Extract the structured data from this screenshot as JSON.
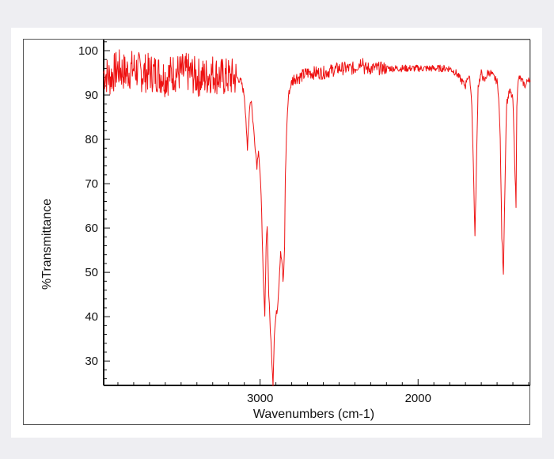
{
  "chart_data": {
    "type": "line",
    "title": "",
    "xlabel": "Wavenumbers (cm-1)",
    "ylabel": "%Transmittance",
    "x_reversed": true,
    "xlim": [
      3990,
      1290
    ],
    "ylim": [
      24.5,
      102.5
    ],
    "xticks": [
      3000,
      2000
    ],
    "yticks": [
      100,
      90,
      80,
      70,
      60,
      50,
      40,
      30
    ],
    "grid": false,
    "line_color": "#ee1111",
    "series": [
      {
        "x": [
          3990,
          3950,
          3900,
          3850,
          3800,
          3750,
          3700,
          3650,
          3600,
          3550,
          3500,
          3450,
          3400,
          3350,
          3300,
          3250,
          3200,
          3150,
          3120,
          3100,
          3090,
          3080,
          3075,
          3065,
          3055,
          3050,
          3040,
          3030,
          3020,
          3010,
          3000,
          2990,
          2980,
          2970,
          2962,
          2955,
          2945,
          2935,
          2925,
          2918,
          2910,
          2900,
          2890,
          2880,
          2870,
          2860,
          2855,
          2850,
          2845,
          2840,
          2830,
          2820,
          2800,
          2780,
          2750,
          2700,
          2600,
          2500,
          2400,
          2350,
          2340,
          2300,
          2200,
          2100,
          2000,
          1900,
          1800,
          1760,
          1740,
          1720,
          1700,
          1690,
          1680,
          1670,
          1660,
          1650,
          1640,
          1620,
          1600,
          1580,
          1560,
          1540,
          1520,
          1500,
          1490,
          1480,
          1470,
          1460,
          1450,
          1440,
          1420,
          1400,
          1380,
          1375,
          1370,
          1360,
          1340,
          1320,
          1300,
          1290
        ],
        "y": [
          95,
          94,
          96,
          95,
          96,
          95,
          95,
          95,
          94,
          95,
          95,
          95,
          94,
          94,
          95,
          94,
          94,
          94,
          93,
          90,
          85,
          77,
          82,
          88,
          89,
          86,
          82,
          78,
          74,
          78,
          72,
          64,
          48,
          40,
          56,
          61,
          45,
          37,
          30,
          25,
          36,
          40,
          42,
          48,
          55,
          52,
          48,
          50,
          56,
          72,
          84,
          90,
          93,
          94,
          94,
          95,
          95,
          96,
          96,
          98,
          96,
          96,
          96,
          96,
          96,
          96,
          96,
          95,
          94,
          93,
          92,
          94,
          94,
          93,
          88,
          74,
          58,
          92,
          95,
          93,
          95,
          95,
          94,
          93,
          90,
          80,
          58,
          50,
          70,
          88,
          91,
          89,
          65,
          88,
          92,
          94,
          93,
          92,
          94,
          93
        ]
      }
    ]
  }
}
